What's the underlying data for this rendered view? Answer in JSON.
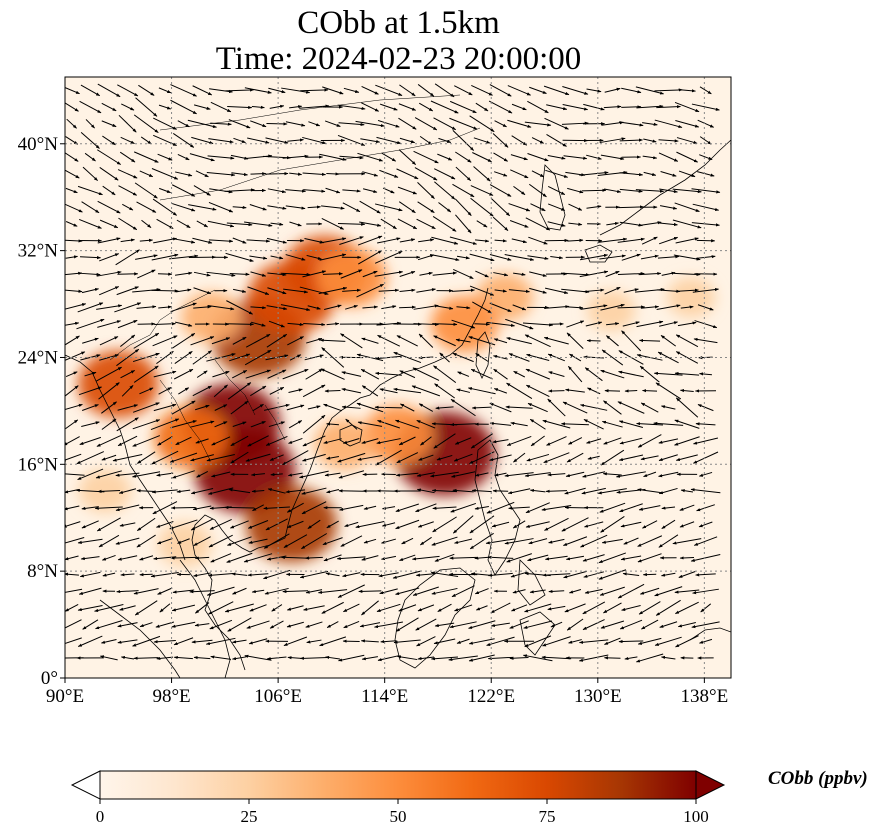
{
  "title": {
    "line1": "CObb at 1.5km",
    "line2": "Time: 2024-02-23 20:00:00"
  },
  "map": {
    "extent": {
      "lon_min": 90,
      "lon_max": 140,
      "lat_min": 0,
      "lat_max": 45
    },
    "gridlines": true,
    "projection": "PlateCarree"
  },
  "axes": {
    "x_ticks": [
      {
        "value": 90,
        "label": "90°E"
      },
      {
        "value": 98,
        "label": "98°E"
      },
      {
        "value": 106,
        "label": "106°E"
      },
      {
        "value": 114,
        "label": "114°E"
      },
      {
        "value": 122,
        "label": "122°E"
      },
      {
        "value": 130,
        "label": "130°E"
      },
      {
        "value": 138,
        "label": "138°E"
      }
    ],
    "y_ticks": [
      {
        "value": 0,
        "label": "0°"
      },
      {
        "value": 8,
        "label": "8°N"
      },
      {
        "value": 16,
        "label": "16°N"
      },
      {
        "value": 24,
        "label": "24°N"
      },
      {
        "value": 32,
        "label": "32°N"
      },
      {
        "value": 40,
        "label": "40°N"
      }
    ]
  },
  "colorbar": {
    "label": "CObb (ppbv)",
    "min": 0,
    "max": 100,
    "ticks": [
      {
        "value": 0,
        "label": "0"
      },
      {
        "value": 25,
        "label": "25"
      },
      {
        "value": 50,
        "label": "50"
      },
      {
        "value": 75,
        "label": "75"
      },
      {
        "value": 100,
        "label": "100"
      }
    ],
    "colormap": [
      "#fff5eb",
      "#fee6ce",
      "#fdd0a2",
      "#fdae6b",
      "#fd8d3c",
      "#f16913",
      "#d94801",
      "#a63603",
      "#7f0000"
    ],
    "extend": "both"
  },
  "plumes": [
    {
      "lon": 103.5,
      "lat": 15.5,
      "value": 100
    },
    {
      "lon": 102.5,
      "lat": 19,
      "value": 95
    },
    {
      "lon": 104.5,
      "lat": 25.5,
      "value": 90
    },
    {
      "lon": 107,
      "lat": 28.5,
      "value": 80
    },
    {
      "lon": 109.5,
      "lat": 30.5,
      "value": 75
    },
    {
      "lon": 111.5,
      "lat": 30,
      "value": 55
    },
    {
      "lon": 94,
      "lat": 22,
      "value": 70
    },
    {
      "lon": 99.5,
      "lat": 18,
      "value": 60
    },
    {
      "lon": 107,
      "lat": 11.5,
      "value": 85
    },
    {
      "lon": 118.5,
      "lat": 16.8,
      "value": 100
    },
    {
      "lon": 115,
      "lat": 18.2,
      "value": 55
    },
    {
      "lon": 111,
      "lat": 17.5,
      "value": 40
    },
    {
      "lon": 123,
      "lat": 28.5,
      "value": 35
    },
    {
      "lon": 120,
      "lat": 26.5,
      "value": 50
    },
    {
      "lon": 131,
      "lat": 27.5,
      "value": 22
    },
    {
      "lon": 137,
      "lat": 28.5,
      "value": 22
    },
    {
      "lon": 93,
      "lat": 14,
      "value": 28
    },
    {
      "lon": 99,
      "lat": 10,
      "value": 30
    },
    {
      "lon": 101,
      "lat": 27,
      "value": 40
    }
  ]
}
